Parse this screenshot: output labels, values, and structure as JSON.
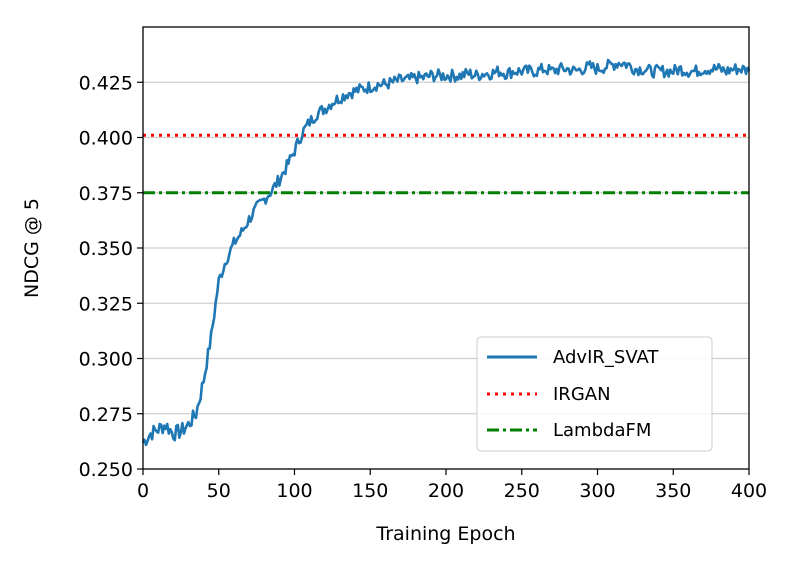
{
  "chart_data": {
    "type": "line",
    "title": "",
    "xlabel": "Training Epoch",
    "ylabel": "NDCG @ 5",
    "xlim": [
      0,
      400
    ],
    "ylim": [
      0.25,
      0.45
    ],
    "x_ticks": [
      0,
      50,
      100,
      150,
      200,
      250,
      300,
      350,
      400
    ],
    "x_tick_labels": [
      "0",
      "50",
      "100",
      "150",
      "200",
      "250",
      "300",
      "350",
      "400"
    ],
    "y_ticks": [
      0.25,
      0.275,
      0.3,
      0.325,
      0.35,
      0.375,
      0.4,
      0.425
    ],
    "y_tick_labels": [
      "0.250",
      "0.275",
      "0.300",
      "0.325",
      "0.350",
      "0.375",
      "0.400",
      "0.425"
    ],
    "grid": "horizontal",
    "legend_position": "lower-right",
    "series": [
      {
        "name": "AdvIR_SVAT",
        "style": "solid",
        "color": "#1f77b4",
        "x": [
          0,
          5,
          10,
          15,
          20,
          25,
          30,
          35,
          40,
          45,
          50,
          55,
          60,
          65,
          70,
          75,
          80,
          85,
          90,
          95,
          100,
          105,
          110,
          115,
          120,
          125,
          130,
          135,
          140,
          145,
          150,
          155,
          160,
          165,
          170,
          175,
          180,
          185,
          190,
          195,
          200,
          205,
          210,
          215,
          220,
          225,
          230,
          235,
          240,
          245,
          250,
          255,
          260,
          265,
          270,
          275,
          280,
          285,
          290,
          295,
          300,
          305,
          310,
          315,
          320,
          325,
          330,
          335,
          340,
          345,
          350,
          355,
          360,
          365,
          370,
          375,
          380,
          385,
          390,
          395,
          400
        ],
        "values": [
          0.262,
          0.266,
          0.268,
          0.27,
          0.266,
          0.267,
          0.27,
          0.275,
          0.29,
          0.31,
          0.335,
          0.345,
          0.352,
          0.357,
          0.363,
          0.368,
          0.372,
          0.376,
          0.381,
          0.387,
          0.394,
          0.402,
          0.407,
          0.411,
          0.413,
          0.416,
          0.418,
          0.42,
          0.421,
          0.422,
          0.423,
          0.424,
          0.424,
          0.425,
          0.426,
          0.426,
          0.427,
          0.427,
          0.428,
          0.428,
          0.428,
          0.428,
          0.428,
          0.429,
          0.428,
          0.429,
          0.429,
          0.43,
          0.429,
          0.43,
          0.43,
          0.43,
          0.43,
          0.431,
          0.43,
          0.431,
          0.431,
          0.43,
          0.431,
          0.432,
          0.431,
          0.432,
          0.433,
          0.434,
          0.433,
          0.431,
          0.431,
          0.43,
          0.43,
          0.43,
          0.43,
          0.431,
          0.43,
          0.43,
          0.431,
          0.431,
          0.431,
          0.43,
          0.431,
          0.431,
          0.43
        ]
      },
      {
        "name": "IRGAN",
        "style": "dotted",
        "color": "#ff0000",
        "x": [
          0,
          400
        ],
        "values": [
          0.401,
          0.401
        ]
      },
      {
        "name": "LambdaFM",
        "style": "dashdot",
        "color": "#008000",
        "x": [
          0,
          400
        ],
        "values": [
          0.375,
          0.375
        ]
      }
    ]
  }
}
